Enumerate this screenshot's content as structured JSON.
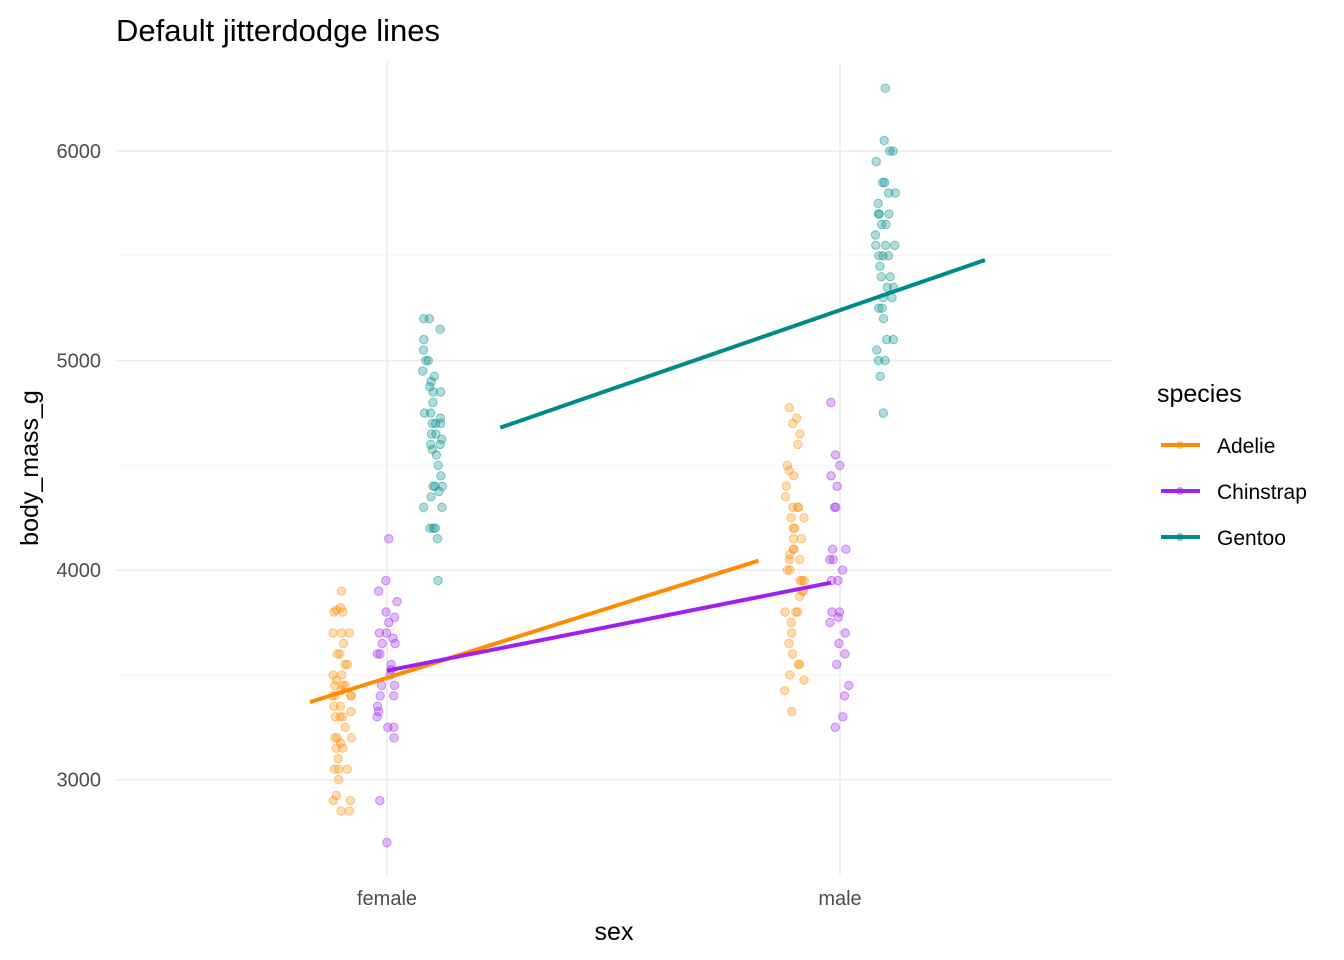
{
  "chart_data": {
    "type": "scatter",
    "title": "Default jitterdodge lines",
    "xlabel": "sex",
    "ylabel": "body_mass_g",
    "categories": [
      "female",
      "male"
    ],
    "yticks": [
      3000,
      4000,
      5000,
      6000
    ],
    "ylim": [
      2545,
      6425
    ],
    "grid": true,
    "legend": {
      "title": "species",
      "placement": "right",
      "entries": [
        "Adelie",
        "Chinstrap",
        "Gentoo"
      ]
    },
    "colors": {
      "Adelie": "#FF8C00",
      "Chinstrap": "#A020F0",
      "Gentoo": "#008B8B"
    },
    "series": [
      {
        "name": "Adelie",
        "points": {
          "female": [
            3900,
            3800,
            3800,
            3810,
            3820,
            3700,
            3700,
            3700,
            3650,
            3600,
            3600,
            3550,
            3550,
            3500,
            3500,
            3475,
            3450,
            3450,
            3450,
            3425,
            3400,
            3400,
            3400,
            3400,
            3350,
            3350,
            3325,
            3300,
            3300,
            3300,
            3250,
            3200,
            3200,
            3200,
            3175,
            3150,
            3150,
            3100,
            3050,
            3050,
            3050,
            3000,
            2900,
            2900,
            2925,
            2850,
            2850
          ],
          "male": [
            4775,
            4725,
            4700,
            4650,
            4600,
            4500,
            4475,
            4450,
            4400,
            4350,
            4300,
            4300,
            4300,
            4250,
            4250,
            4200,
            4200,
            4150,
            4150,
            4100,
            4100,
            4075,
            4050,
            4050,
            4000,
            4000,
            3950,
            3950,
            3950,
            3900,
            3900,
            3875,
            3800,
            3800,
            3800,
            3750,
            3700,
            3650,
            3600,
            3550,
            3550,
            3500,
            3475,
            3425,
            3325
          ]
        },
        "trend": {
          "x_start": -0.17,
          "y_start": 3370,
          "x_end": 0.82,
          "y_end": 4045
        }
      },
      {
        "name": "Chinstrap",
        "points": {
          "female": [
            4150,
            3950,
            3900,
            3850,
            3800,
            3775,
            3750,
            3700,
            3700,
            3675,
            3650,
            3650,
            3600,
            3600,
            3550,
            3525,
            3500,
            3450,
            3450,
            3400,
            3400,
            3350,
            3325,
            3300,
            3250,
            3250,
            3200,
            2900,
            2700
          ],
          "male": [
            4800,
            4550,
            4500,
            4450,
            4400,
            4300,
            4300,
            4100,
            4100,
            4050,
            4050,
            4000,
            3950,
            3950,
            3800,
            3800,
            3775,
            3750,
            3700,
            3650,
            3600,
            3550,
            3450,
            3400,
            3300,
            3250
          ]
        },
        "trend": {
          "x_start": 0.0,
          "y_start": 3520,
          "x_end": 0.98,
          "y_end": 3940
        }
      },
      {
        "name": "Gentoo",
        "points": {
          "female": [
            5200,
            5200,
            5150,
            5100,
            5050,
            5000,
            5000,
            4950,
            4925,
            4900,
            4875,
            4850,
            4850,
            4800,
            4750,
            4750,
            4725,
            4700,
            4700,
            4700,
            4650,
            4650,
            4625,
            4600,
            4600,
            4575,
            4550,
            4500,
            4450,
            4400,
            4400,
            4400,
            4375,
            4350,
            4300,
            4300,
            4200,
            4200,
            4200,
            4150,
            3950
          ],
          "male": [
            6300,
            6050,
            6000,
            6000,
            5950,
            5850,
            5850,
            5800,
            5800,
            5750,
            5700,
            5700,
            5700,
            5650,
            5650,
            5600,
            5550,
            5550,
            5550,
            5500,
            5500,
            5500,
            5450,
            5400,
            5400,
            5350,
            5350,
            5300,
            5300,
            5250,
            5250,
            5200,
            5100,
            5100,
            5050,
            5000,
            5000,
            4925,
            4750
          ]
        },
        "trend": {
          "x_start": 0.25,
          "y_start": 4680,
          "x_end": 1.32,
          "y_end": 5480
        }
      }
    ]
  }
}
